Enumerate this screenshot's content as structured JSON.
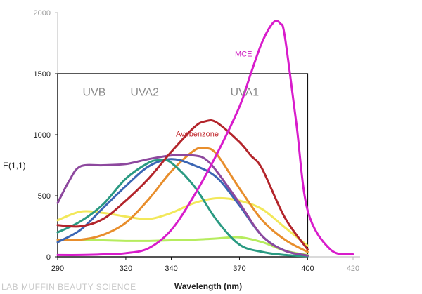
{
  "chart_data": {
    "type": "line",
    "title": "",
    "xlabel": "Wavelength (nm)",
    "ylabel": "E(1,1)",
    "xlim": [
      290,
      420
    ],
    "ylim": [
      0,
      2000
    ],
    "x_ticks": [
      {
        "value": 290,
        "label": "290"
      },
      {
        "value": 320,
        "label": "320"
      },
      {
        "value": 340,
        "label": "340"
      },
      {
        "value": 370,
        "label": "370"
      },
      {
        "value": 400,
        "label": "400"
      },
      {
        "value": 420,
        "label": "420",
        "faint": true
      }
    ],
    "y_ticks": [
      {
        "value": 0,
        "label": "0"
      },
      {
        "value": 500,
        "label": "500"
      },
      {
        "value": 1000,
        "label": "1000"
      },
      {
        "value": 1500,
        "label": "1500"
      },
      {
        "value": 2000,
        "label": "2000",
        "faint": true
      }
    ],
    "regions": [
      {
        "label": "UVB",
        "x": 301
      },
      {
        "label": "UVA2",
        "x": 322
      },
      {
        "label": "UVA1",
        "x": 366
      }
    ],
    "annotations": [
      {
        "text": "Avobenzone",
        "x": 342,
        "y": 985,
        "color": "#c0262b"
      },
      {
        "text": "MCE",
        "x": 368,
        "y": 1640,
        "color": "#cf1fc2"
      }
    ],
    "series": [
      {
        "name": "Avobenzone",
        "color": "#b3252b",
        "x": [
          290,
          300,
          310,
          320,
          330,
          340,
          350,
          355,
          360,
          370,
          375,
          380,
          390,
          400
        ],
        "y": [
          260,
          250,
          310,
          460,
          640,
          860,
          1060,
          1110,
          1100,
          940,
          830,
          720,
          320,
          60
        ]
      },
      {
        "name": "MCE",
        "color": "#d81ccb",
        "x": [
          290,
          300,
          310,
          320,
          330,
          340,
          350,
          360,
          370,
          375,
          380,
          385,
          388,
          390,
          395,
          400,
          410,
          420
        ],
        "y": [
          15,
          15,
          20,
          30,
          70,
          220,
          500,
          840,
          1230,
          1500,
          1760,
          1920,
          1910,
          1800,
          1100,
          380,
          60,
          20
        ]
      },
      {
        "name": "Purple",
        "color": "#8d489e",
        "x": [
          290,
          295,
          300,
          310,
          320,
          330,
          340,
          350,
          355,
          360,
          370,
          380,
          390,
          400
        ],
        "y": [
          440,
          620,
          740,
          750,
          760,
          800,
          830,
          830,
          800,
          700,
          440,
          170,
          50,
          10
        ]
      },
      {
        "name": "Teal",
        "color": "#2a9a82",
        "x": [
          290,
          300,
          310,
          320,
          330,
          335,
          340,
          350,
          360,
          370,
          380,
          390,
          400
        ],
        "y": [
          200,
          290,
          430,
          640,
          770,
          790,
          770,
          580,
          300,
          100,
          40,
          15,
          5
        ]
      },
      {
        "name": "Blue",
        "color": "#3b66b4",
        "x": [
          290,
          300,
          310,
          320,
          330,
          340,
          350,
          360,
          370,
          380,
          390,
          400
        ],
        "y": [
          120,
          220,
          400,
          580,
          740,
          800,
          750,
          650,
          420,
          170,
          50,
          10
        ]
      },
      {
        "name": "Orange",
        "color": "#e88e2c",
        "x": [
          290,
          300,
          310,
          320,
          330,
          340,
          350,
          355,
          360,
          370,
          380,
          390,
          400
        ],
        "y": [
          140,
          140,
          180,
          280,
          470,
          700,
          870,
          890,
          840,
          560,
          300,
          140,
          40
        ]
      },
      {
        "name": "Yellow",
        "color": "#f2e85a",
        "x": [
          290,
          300,
          310,
          320,
          330,
          340,
          350,
          360,
          370,
          380,
          390,
          400
        ],
        "y": [
          300,
          370,
          360,
          330,
          310,
          360,
          440,
          480,
          460,
          390,
          240,
          90
        ]
      },
      {
        "name": "Green",
        "color": "#b6ec5e",
        "x": [
          290,
          300,
          310,
          320,
          330,
          340,
          350,
          360,
          370,
          380,
          390,
          400
        ],
        "y": [
          140,
          140,
          135,
          130,
          130,
          135,
          140,
          150,
          160,
          120,
          50,
          15
        ]
      }
    ]
  },
  "watermark": "LAB MUFFIN BEAUTY SCIENCE"
}
